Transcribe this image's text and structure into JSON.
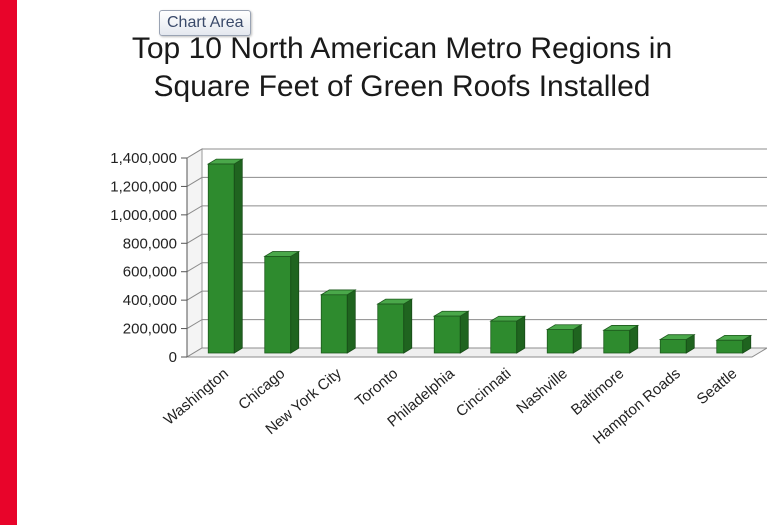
{
  "tooltip": "Chart Area",
  "chart_data": {
    "type": "bar",
    "title_line1": "Top 10 North American Metro Regions in",
    "title_line2": "Square Feet of Green Roofs Installed",
    "xlabel": "",
    "ylabel": "",
    "ylim": [
      0,
      1400000
    ],
    "yticks": [
      "1,400,000",
      "1,200,000",
      "1,000,000",
      "800,000",
      "600,000",
      "400,000",
      "200,000",
      "0"
    ],
    "ytick_values": [
      1400000,
      1200000,
      1000000,
      800000,
      600000,
      400000,
      200000,
      0
    ],
    "grid": true,
    "categories": [
      "Washington",
      "Chicago",
      "New York City",
      "Toronto",
      "Philadelphia",
      "Cincinnati",
      "Nashville",
      "Baltimore",
      "Hampton Roads",
      "Seattle"
    ],
    "values": [
      1330000,
      680000,
      410000,
      345000,
      260000,
      225000,
      165000,
      160000,
      95000,
      90000
    ],
    "bar_color": "#2e8b2e"
  }
}
